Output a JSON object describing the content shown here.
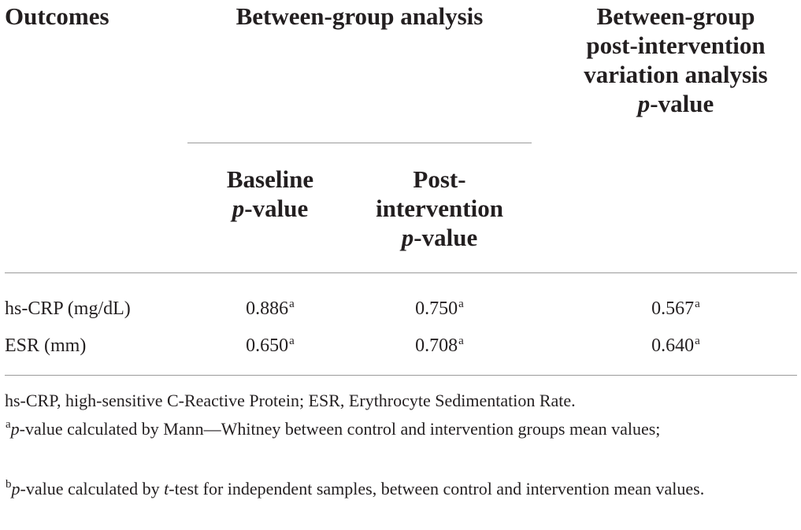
{
  "header": {
    "outcomes": "Outcomes",
    "between_group": "Between-group analysis",
    "variation_line1": "Between-group",
    "variation_line2": "post-intervention",
    "variation_line3": "variation analysis",
    "p_italic": "p",
    "value_suffix": "-value",
    "baseline": "Baseline",
    "post_line1": "Post-",
    "post_line2": "intervention"
  },
  "rows": [
    {
      "outcome": "hs-CRP (mg/dL)",
      "baseline": "0.886",
      "baseline_sup": "a",
      "post": "0.750",
      "post_sup": "a",
      "variation": "0.567",
      "variation_sup": "a"
    },
    {
      "outcome": "ESR (mm)",
      "baseline": "0.650",
      "baseline_sup": "a",
      "post": "0.708",
      "post_sup": "a",
      "variation": "0.640",
      "variation_sup": "a"
    }
  ],
  "footnotes": {
    "abbreviations": "hs-CRP, high-sensitive C-Reactive Protein; ESR, Erythrocyte Sedimentation Rate.",
    "a_mark": "a",
    "a_p": "p",
    "a_text": "-value calculated by Mann—Whitney between control and intervention groups mean values;",
    "b_mark": "b",
    "b_p": "p",
    "b_text1": "-value calculated by ",
    "b_t": "t",
    "b_text2": "-test for independent samples, between control and intervention mean values."
  }
}
